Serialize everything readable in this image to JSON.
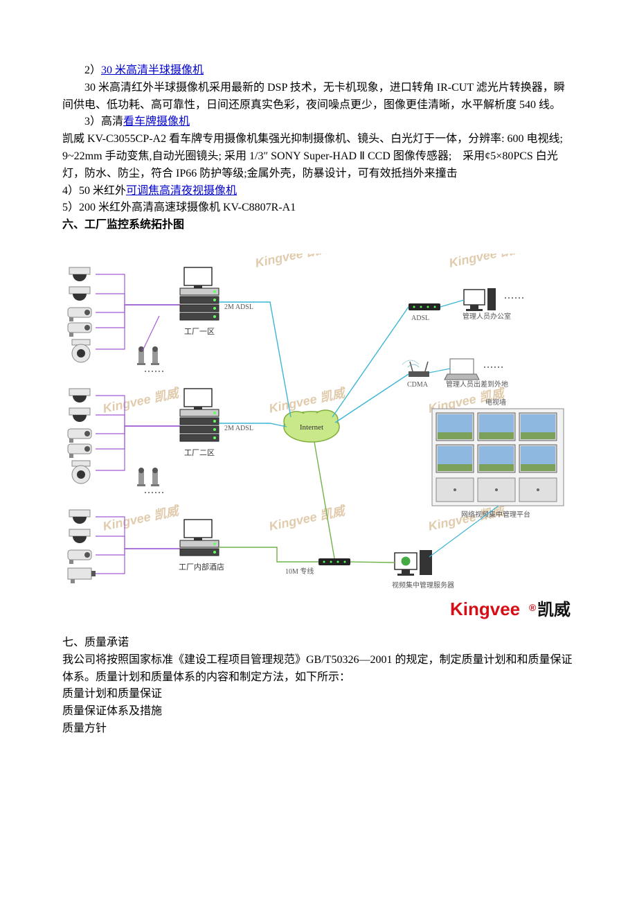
{
  "text": {
    "l1_prefix": "2）",
    "l1_link": "30 米高清半球摄像机",
    "p1": "30 米高清红外半球摄像机采用最新的 DSP 技术，无卡机现象，进口转角 IR-CUT 滤光片转换器，瞬间供电、低功耗、高可靠性，日间还原真实色彩，夜间噪点更少，图像更佳清晰，水平解析度 540 线。",
    "l3_prefix": "3）高清",
    "l3_link": "看车牌摄像机",
    "p2": "凯威 KV-C3055CP-A2 看车牌专用摄像机集强光抑制摄像机、镜头、白光灯于一体，分辨率: 600 电视线; 9~22mm 手动变焦,自动光圈镜头; 采用 1/3″ SONY Super-HAD Ⅱ CCD 图像传感器;　采用¢5×80PCS 白光灯，防水、防尘，符合 IP66 防护等级;金属外壳，防暴设计，可有效抵挡外来撞击",
    "l4_prefix": "4）50 米红外",
    "l4_link": "可调焦高清夜视摄像机",
    "l5": "5）200 米红外高清高速球摄像机 KV-C8807R-A1",
    "h6": "六、工厂监控系统拓扑图",
    "h7": "七、质量承诺",
    "p3": "我公司将按照国家标准《建设工程项目管理规范》GB/T50326—2001 的规定，制定质量计划和和质量保证体系。质量计划和质量体系的内容和制定方法，如下所示：",
    "q1": "质量计划和质量保证",
    "q2": "质量保证体系及措施",
    "q3": "质量方针"
  },
  "diagram": {
    "watermarks": [
      "Kingvee 凯威",
      "Kingvee 凯威",
      "Kingvee 凯威",
      "Kingvee 凯威",
      "Kingvee 凯威",
      "Kingvee 凯威",
      "Kingvee 凯威",
      "Kingvee 凯威"
    ],
    "labels": {
      "adsl_2m_a": "2M ADSL",
      "adsl_2m_b": "2M ADSL",
      "zone1": "工厂一区",
      "zone2": "工厂二区",
      "hotel": "工厂内部酒店",
      "internet": "Internet",
      "adsl": "ADSL",
      "cdma": "CDMA",
      "office": "管理人员办公室",
      "outside": "管理人员出差到外地",
      "tvwall": "电视墙",
      "platform": "网络视频集中管理平台",
      "leased": "10M 专线",
      "server": "视频集中管理服务器"
    },
    "brand": {
      "en": "Kingvee",
      "cn": "凯威"
    },
    "colors": {
      "bg": "#ffffff",
      "cam_body": "#e6e6e6",
      "cam_dark": "#555555",
      "cam_dome": "#333333",
      "stack": "#444444",
      "stack_light": "#cccccc",
      "wire_purple": "#a05bd6",
      "wire_blue": "#3bb5d6",
      "wire_green": "#6fb24a",
      "cloud_fill": "#c9e88a",
      "cloud_stroke": "#7fae3a",
      "tv_frame": "#8a8a8a",
      "tv_panel": "#d6d6d6",
      "laptop": "#b8b8b8",
      "router": "#222222",
      "antenna": "#555555",
      "server": "#333333",
      "monitor": "#222222",
      "brand_red": "#d40f17"
    }
  }
}
